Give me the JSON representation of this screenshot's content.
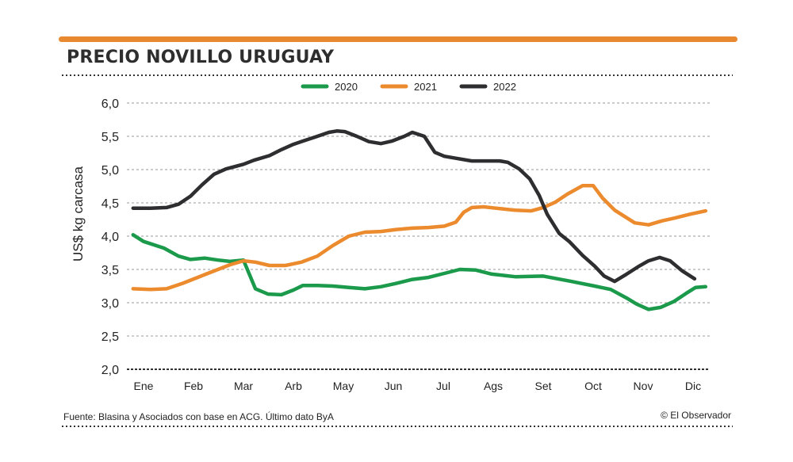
{
  "title": "PRECIO NOVILLO URUGUAY",
  "source": "Fuente: Blasina y Asociados con base en  ACG. Último dato ByA",
  "credit": "© El Observador",
  "colors": {
    "accent_bar": "#e8882f",
    "2020": "#1a9a4a",
    "2021": "#ec8a2e",
    "2022": "#2e2e30"
  },
  "chart_data": {
    "type": "line",
    "title": "PRECIO NOVILLO URUGUAY",
    "ylabel": "US$ kg carcasa",
    "xlabel": "",
    "categories": [
      "Ene",
      "Feb",
      "Mar",
      "Arb",
      "May",
      "Jun",
      "Jul",
      "Ags",
      "Set",
      "Oct",
      "Nov",
      "Dic"
    ],
    "yticks": [
      "2,0",
      "2,5",
      "3,0",
      "3,5",
      "4,0",
      "4,5",
      "5,0",
      "5,5",
      "6,0"
    ],
    "ylim": [
      2.0,
      6.0
    ],
    "xlim_months": [
      0.6,
      12.4
    ],
    "grid": "horizontal dotted",
    "legend": "top",
    "series": [
      {
        "name": "2020",
        "color": "#1a9a4a",
        "points": [
          [
            0.79,
            4.02
          ],
          [
            1.0,
            3.92
          ],
          [
            1.41,
            3.82
          ],
          [
            1.7,
            3.7
          ],
          [
            1.94,
            3.65
          ],
          [
            2.22,
            3.67
          ],
          [
            2.49,
            3.64
          ],
          [
            2.73,
            3.62
          ],
          [
            3.0,
            3.64
          ],
          [
            3.24,
            3.21
          ],
          [
            3.49,
            3.13
          ],
          [
            3.76,
            3.12
          ],
          [
            4.0,
            3.19
          ],
          [
            4.19,
            3.26
          ],
          [
            4.48,
            3.26
          ],
          [
            4.79,
            3.25
          ],
          [
            5.11,
            3.23
          ],
          [
            5.43,
            3.21
          ],
          [
            5.75,
            3.24
          ],
          [
            6.06,
            3.29
          ],
          [
            6.38,
            3.35
          ],
          [
            6.7,
            3.38
          ],
          [
            7.02,
            3.44
          ],
          [
            7.33,
            3.5
          ],
          [
            7.65,
            3.49
          ],
          [
            7.97,
            3.43
          ],
          [
            8.44,
            3.39
          ],
          [
            9.0,
            3.4
          ],
          [
            9.56,
            3.32
          ],
          [
            10.03,
            3.25
          ],
          [
            10.35,
            3.2
          ],
          [
            10.67,
            3.07
          ],
          [
            10.87,
            2.98
          ],
          [
            11.11,
            2.9
          ],
          [
            11.35,
            2.93
          ],
          [
            11.62,
            3.02
          ],
          [
            11.86,
            3.14
          ],
          [
            12.05,
            3.23
          ],
          [
            12.25,
            3.24
          ]
        ]
      },
      {
        "name": "2021",
        "color": "#ec8a2e",
        "points": [
          [
            0.79,
            3.21
          ],
          [
            1.14,
            3.2
          ],
          [
            1.46,
            3.21
          ],
          [
            1.78,
            3.29
          ],
          [
            2.25,
            3.43
          ],
          [
            2.73,
            3.57
          ],
          [
            3.0,
            3.63
          ],
          [
            3.24,
            3.61
          ],
          [
            3.52,
            3.56
          ],
          [
            3.84,
            3.56
          ],
          [
            4.16,
            3.61
          ],
          [
            4.48,
            3.7
          ],
          [
            4.79,
            3.86
          ],
          [
            5.11,
            4.0
          ],
          [
            5.43,
            4.06
          ],
          [
            5.75,
            4.07
          ],
          [
            6.06,
            4.1
          ],
          [
            6.38,
            4.12
          ],
          [
            6.7,
            4.13
          ],
          [
            7.02,
            4.15
          ],
          [
            7.25,
            4.21
          ],
          [
            7.41,
            4.36
          ],
          [
            7.57,
            4.43
          ],
          [
            7.81,
            4.44
          ],
          [
            8.05,
            4.42
          ],
          [
            8.44,
            4.39
          ],
          [
            8.76,
            4.38
          ],
          [
            9.0,
            4.43
          ],
          [
            9.24,
            4.51
          ],
          [
            9.48,
            4.63
          ],
          [
            9.79,
            4.76
          ],
          [
            10.0,
            4.76
          ],
          [
            10.19,
            4.57
          ],
          [
            10.43,
            4.39
          ],
          [
            10.83,
            4.2
          ],
          [
            11.11,
            4.17
          ],
          [
            11.38,
            4.23
          ],
          [
            11.62,
            4.27
          ],
          [
            11.94,
            4.33
          ],
          [
            12.25,
            4.38
          ]
        ]
      },
      {
        "name": "2022",
        "color": "#2e2e30",
        "points": [
          [
            0.79,
            4.42
          ],
          [
            1.14,
            4.42
          ],
          [
            1.46,
            4.43
          ],
          [
            1.7,
            4.48
          ],
          [
            1.94,
            4.6
          ],
          [
            2.17,
            4.77
          ],
          [
            2.41,
            4.93
          ],
          [
            2.65,
            5.01
          ],
          [
            3.0,
            5.08
          ],
          [
            3.21,
            5.14
          ],
          [
            3.52,
            5.21
          ],
          [
            3.76,
            5.3
          ],
          [
            4.0,
            5.38
          ],
          [
            4.24,
            5.44
          ],
          [
            4.48,
            5.5
          ],
          [
            4.71,
            5.56
          ],
          [
            4.87,
            5.58
          ],
          [
            5.03,
            5.57
          ],
          [
            5.27,
            5.5
          ],
          [
            5.51,
            5.42
          ],
          [
            5.75,
            5.39
          ],
          [
            5.98,
            5.43
          ],
          [
            6.22,
            5.5
          ],
          [
            6.38,
            5.56
          ],
          [
            6.62,
            5.5
          ],
          [
            6.83,
            5.26
          ],
          [
            7.02,
            5.2
          ],
          [
            7.25,
            5.17
          ],
          [
            7.57,
            5.13
          ],
          [
            8.13,
            5.13
          ],
          [
            8.29,
            5.11
          ],
          [
            8.52,
            5.01
          ],
          [
            8.73,
            4.86
          ],
          [
            8.92,
            4.61
          ],
          [
            9.08,
            4.33
          ],
          [
            9.32,
            4.04
          ],
          [
            9.52,
            3.92
          ],
          [
            9.79,
            3.71
          ],
          [
            10.03,
            3.55
          ],
          [
            10.22,
            3.4
          ],
          [
            10.43,
            3.32
          ],
          [
            10.67,
            3.43
          ],
          [
            10.9,
            3.54
          ],
          [
            11.11,
            3.63
          ],
          [
            11.33,
            3.68
          ],
          [
            11.54,
            3.63
          ],
          [
            11.78,
            3.48
          ],
          [
            12.03,
            3.36
          ]
        ]
      }
    ]
  }
}
